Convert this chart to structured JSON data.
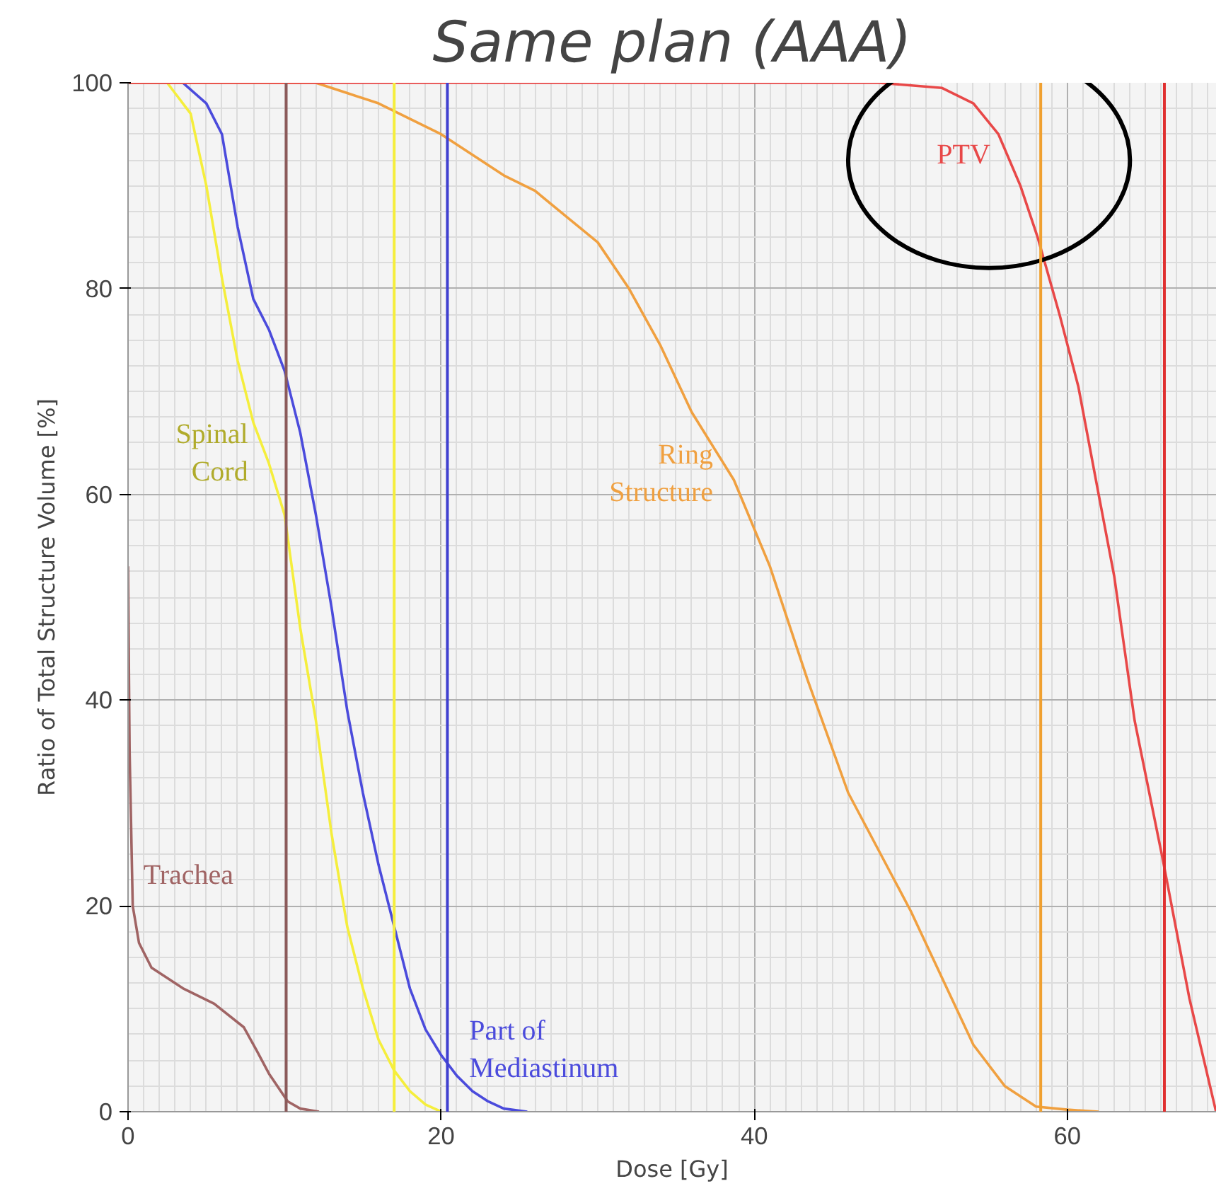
{
  "chart_data": {
    "type": "line",
    "title": "Same plan (AAA)",
    "xlabel": "Dose [Gy]",
    "ylabel": "Ratio of Total Structure Volume [%]",
    "xlim": [
      0,
      69.5
    ],
    "ylim": [
      0,
      100
    ],
    "xticks": [
      0,
      20,
      40,
      60
    ],
    "yticks": [
      0,
      20,
      40,
      60,
      80,
      100
    ],
    "grid": true,
    "line_style": "solid",
    "series": [
      {
        "name": "Spinal Cord",
        "color": "#f5ee3c",
        "x": [
          0,
          2.5,
          4,
          5,
          6,
          7,
          8,
          9,
          10,
          11,
          12,
          13,
          14,
          15,
          16,
          17,
          18,
          19,
          20
        ],
        "values": [
          100,
          100,
          97,
          90,
          81,
          73,
          67,
          63,
          58,
          47,
          38,
          27,
          18,
          12,
          7,
          4,
          2,
          0.7,
          0
        ]
      },
      {
        "name": "Part of Mediastinum",
        "color": "#4b4bdc",
        "x": [
          0,
          3.5,
          5,
          6,
          7,
          8,
          9,
          10,
          11,
          12,
          13,
          14,
          15,
          16,
          17,
          18,
          19,
          20,
          21,
          22,
          23,
          24,
          25.5
        ],
        "values": [
          100,
          100,
          98,
          95,
          86,
          79,
          76,
          72,
          66,
          58,
          49,
          39,
          31,
          24,
          18,
          12,
          8,
          5.5,
          3.5,
          2,
          1,
          0.3,
          0
        ]
      },
      {
        "name": "Ring Structure",
        "color": "#f0a040",
        "x": [
          0,
          12,
          14,
          16,
          18,
          20,
          22,
          24,
          26,
          28,
          30,
          32,
          34,
          36,
          38.7,
          41,
          43.4,
          46,
          50,
          54,
          56,
          58,
          60,
          62
        ],
        "values": [
          100,
          100,
          99,
          98,
          96.5,
          95,
          93,
          91,
          89.5,
          87,
          84.5,
          80,
          74.5,
          68,
          61.4,
          53,
          42,
          31,
          19.5,
          6.5,
          2.5,
          0.5,
          0.2,
          0
        ]
      },
      {
        "name": "PTV",
        "color": "#e84848",
        "x": [
          0,
          48,
          52,
          54,
          55.6,
          57,
          58.1,
          59.5,
          60.7,
          62,
          63,
          64.3,
          66.1,
          67.8,
          69.5
        ],
        "values": [
          100,
          100,
          99.5,
          98,
          95,
          90,
          85,
          77.5,
          70.5,
          60,
          52,
          38,
          24.5,
          11,
          0
        ]
      },
      {
        "name": "Trachea",
        "color": "#a06464",
        "x": [
          0,
          0.1,
          0.3,
          0.7,
          1.5,
          3.5,
          5.5,
          7.4,
          8.2,
          9,
          10.2,
          11,
          12.2
        ],
        "values": [
          53,
          35,
          20,
          16.4,
          14,
          12,
          10.5,
          8.2,
          6,
          3.7,
          1,
          0.3,
          0
        ]
      }
    ],
    "ref_lines": [
      {
        "axis": "x",
        "value": 10.1,
        "color": "#8b5a5a"
      },
      {
        "axis": "x",
        "value": 17.0,
        "color": "#f5ee3c"
      },
      {
        "axis": "x",
        "value": 20.4,
        "color": "#4040d0"
      },
      {
        "axis": "x",
        "value": 58.3,
        "color": "#f0a030"
      },
      {
        "axis": "x",
        "value": 66.2,
        "color": "#e03030"
      }
    ]
  }
}
